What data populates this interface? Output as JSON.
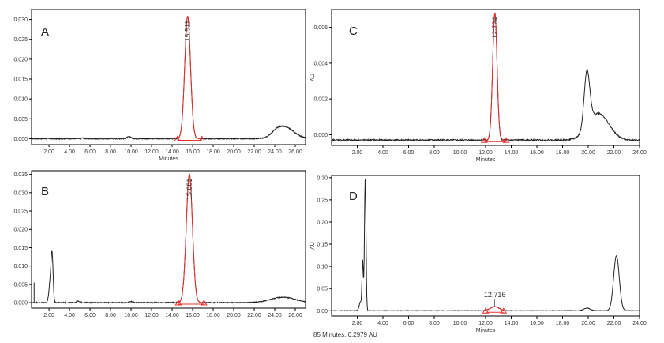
{
  "colors": {
    "trace": "#222222",
    "peak": "#e8312d"
  },
  "footer_text": "85 Minutes, 0.2979 AU",
  "chart_data": [
    {
      "id": "A",
      "type": "line",
      "label": "A",
      "xlabel": "Minutes",
      "ylabel": "",
      "xlim": [
        0.3,
        27.0
      ],
      "ylim": [
        -0.0015,
        0.0325
      ],
      "x_ticks": [
        2,
        4,
        6,
        8,
        10,
        12,
        14,
        16,
        18,
        20,
        22,
        24,
        26
      ],
      "x_tick_labels": [
        "2.00",
        "4.00",
        "6.00",
        "8.00",
        "10.00",
        "12.00",
        "14.00",
        "16.00",
        "18.00",
        "20.00",
        "22.00",
        "24.00",
        "26.00"
      ],
      "y_ticks": [
        0,
        0.005,
        0.01,
        0.015,
        0.02,
        0.025,
        0.03
      ],
      "y_tick_labels": [
        "0.000",
        "0.005",
        "0.010",
        "0.015",
        "0.020",
        "0.025",
        "0.030"
      ],
      "baseline": 0.0,
      "noise": 0.00012,
      "minor_peaks": [
        {
          "x": 5.3,
          "h": 0.0002,
          "w": 0.15
        },
        {
          "x": 9.8,
          "h": 0.0005,
          "w": 0.2
        },
        {
          "x": 25.0,
          "h": 0.0028,
          "w": 0.9
        },
        {
          "x": 24.2,
          "h": 0.0008,
          "w": 0.5
        }
      ],
      "main_peak": {
        "x": 15.511,
        "h": 0.0308,
        "w": 0.28,
        "label": "15.511",
        "start": 14.5,
        "end": 16.9
      }
    },
    {
      "id": "B",
      "type": "line",
      "label": "B",
      "xlabel": "",
      "ylabel": "",
      "xlim": [
        0.3,
        27.0
      ],
      "ylim": [
        -0.0015,
        0.036
      ],
      "x_ticks": [
        2,
        4,
        6,
        8,
        10,
        12,
        14,
        16,
        18,
        20,
        22,
        24,
        26
      ],
      "x_tick_labels": [
        "2.00",
        "4.00",
        "6.00",
        "8.00",
        "10.00",
        "12.00",
        "14.00",
        "16.00",
        "18.00",
        "20.00",
        "22.00",
        "24.00",
        "26.00"
      ],
      "y_ticks": [
        0,
        0.005,
        0.01,
        0.015,
        0.02,
        0.025,
        0.03,
        0.035
      ],
      "y_tick_labels": [
        "0.000",
        "0.005",
        "0.010",
        "0.015",
        "0.020",
        "0.025",
        "0.030",
        "0.035"
      ],
      "baseline": 0.0,
      "noise": 0.00012,
      "minor_peaks": [
        {
          "x": 2.3,
          "h": 0.0128,
          "w": 0.1
        },
        {
          "x": 2.1,
          "h": 0.005,
          "w": 0.12
        },
        {
          "x": 4.8,
          "h": 0.0004,
          "w": 0.15
        },
        {
          "x": 10.0,
          "h": 0.0003,
          "w": 0.2
        },
        {
          "x": 24.8,
          "h": 0.0015,
          "w": 1.2
        }
      ],
      "spike": {
        "x": 0.55,
        "h": 0.0055
      },
      "main_peak": {
        "x": 15.681,
        "h": 0.035,
        "w": 0.3,
        "label": "15.681",
        "start": 14.6,
        "end": 17.1
      }
    },
    {
      "id": "C",
      "type": "line",
      "label": "C",
      "xlabel": "Minutes",
      "ylabel": "AU",
      "xlim": [
        0.0,
        24.0
      ],
      "ylim": [
        -0.0006,
        0.007
      ],
      "x_ticks": [
        2,
        4,
        6,
        8,
        10,
        12,
        14,
        16,
        18,
        20,
        22,
        24
      ],
      "x_tick_labels": [
        "2.00",
        "4.00",
        "6.00",
        "8.00",
        "10.00",
        "12.00",
        "14.00",
        "16.00",
        "18.00",
        "20.00",
        "22.00",
        "24.00"
      ],
      "y_ticks": [
        0,
        0.002,
        0.004,
        0.006
      ],
      "y_tick_labels": [
        "0.000",
        "0.002",
        "0.004",
        "0.006"
      ],
      "baseline": -0.0003,
      "noise": 4e-05,
      "minor_peaks": [
        {
          "x": 19.9,
          "h": 0.0031,
          "w": 0.22
        },
        {
          "x": 20.8,
          "h": 0.0015,
          "w": 0.8
        }
      ],
      "main_peak": {
        "x": 12.724,
        "h": 0.0071,
        "w": 0.17,
        "label": "12.724",
        "start": 11.9,
        "end": 13.6
      }
    },
    {
      "id": "D",
      "type": "line",
      "label": "D",
      "xlabel": "Minutes",
      "ylabel": "AU",
      "xlim": [
        0.0,
        24.0
      ],
      "ylim": [
        -0.012,
        0.305
      ],
      "x_ticks": [
        2,
        4,
        6,
        8,
        10,
        12,
        14,
        16,
        18,
        20,
        22,
        24
      ],
      "x_tick_labels": [
        "2.00",
        "4.00",
        "6.00",
        "8.00",
        "10.00",
        "12.00",
        "14.00",
        "16.00",
        "18.00",
        "20.00",
        "22.00",
        "24.00"
      ],
      "y_ticks": [
        0,
        0.05,
        0.1,
        0.15,
        0.2,
        0.25,
        0.3
      ],
      "y_tick_labels": [
        "0.00",
        "0.05",
        "0.10",
        "0.15",
        "0.20",
        "0.25",
        "0.30"
      ],
      "baseline": 0.0,
      "noise": 0.0006,
      "minor_peaks": [
        {
          "x": 2.62,
          "h": 0.298,
          "w": 0.06
        },
        {
          "x": 2.42,
          "h": 0.11,
          "w": 0.05
        },
        {
          "x": 2.25,
          "h": 0.02,
          "w": 0.1
        },
        {
          "x": 19.9,
          "h": 0.006,
          "w": 0.25
        },
        {
          "x": 22.2,
          "h": 0.124,
          "w": 0.22
        }
      ],
      "main_peak": {
        "x": 12.716,
        "h": 0.009,
        "w": 0.35,
        "label": "12.716",
        "start": 12.0,
        "end": 13.4
      }
    }
  ]
}
